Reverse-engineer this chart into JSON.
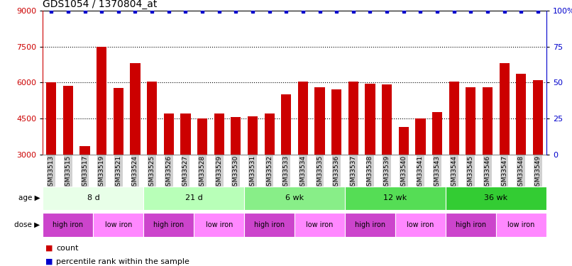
{
  "title": "GDS1054 / 1370804_at",
  "samples": [
    "GSM33513",
    "GSM33515",
    "GSM33517",
    "GSM33519",
    "GSM33521",
    "GSM33524",
    "GSM33525",
    "GSM33526",
    "GSM33527",
    "GSM33528",
    "GSM33529",
    "GSM33530",
    "GSM33531",
    "GSM33532",
    "GSM33533",
    "GSM33534",
    "GSM33535",
    "GSM33536",
    "GSM33537",
    "GSM33538",
    "GSM33539",
    "GSM33540",
    "GSM33541",
    "GSM33543",
    "GSM33544",
    "GSM33545",
    "GSM33546",
    "GSM33547",
    "GSM33548",
    "GSM33549"
  ],
  "counts": [
    6010,
    5870,
    3350,
    7500,
    5780,
    6800,
    6050,
    4700,
    4700,
    4500,
    4700,
    4550,
    4600,
    4700,
    5500,
    6050,
    5800,
    5700,
    6050,
    5950,
    5930,
    4150,
    4500,
    4750,
    6050,
    5800,
    5800,
    6800,
    6350,
    6100
  ],
  "bar_color": "#cc0000",
  "dot_color": "#0000cc",
  "ylim_left": [
    3000,
    9000
  ],
  "yticks_left": [
    3000,
    4500,
    6000,
    7500,
    9000
  ],
  "yticks_right": [
    0,
    25,
    50,
    75,
    100
  ],
  "ylabel_left_color": "#cc0000",
  "ylabel_right_color": "#0000cc",
  "age_groups": [
    {
      "label": "8 d",
      "start": 0,
      "end": 6,
      "color": "#e8ffe8"
    },
    {
      "label": "21 d",
      "start": 6,
      "end": 12,
      "color": "#b8ffb8"
    },
    {
      "label": "6 wk",
      "start": 12,
      "end": 18,
      "color": "#88ee88"
    },
    {
      "label": "12 wk",
      "start": 18,
      "end": 24,
      "color": "#55dd55"
    },
    {
      "label": "36 wk",
      "start": 24,
      "end": 30,
      "color": "#33cc33"
    }
  ],
  "dose_groups": [
    {
      "label": "high iron",
      "start": 0,
      "end": 3,
      "color": "#cc44cc"
    },
    {
      "label": "low iron",
      "start": 3,
      "end": 6,
      "color": "#ff88ff"
    },
    {
      "label": "high iron",
      "start": 6,
      "end": 9,
      "color": "#cc44cc"
    },
    {
      "label": "low iron",
      "start": 9,
      "end": 12,
      "color": "#ff88ff"
    },
    {
      "label": "high iron",
      "start": 12,
      "end": 15,
      "color": "#cc44cc"
    },
    {
      "label": "low iron",
      "start": 15,
      "end": 18,
      "color": "#ff88ff"
    },
    {
      "label": "high iron",
      "start": 18,
      "end": 21,
      "color": "#cc44cc"
    },
    {
      "label": "low iron",
      "start": 21,
      "end": 24,
      "color": "#ff88ff"
    },
    {
      "label": "high iron",
      "start": 24,
      "end": 27,
      "color": "#cc44cc"
    },
    {
      "label": "low iron",
      "start": 27,
      "end": 30,
      "color": "#ff88ff"
    }
  ],
  "background_color": "#ffffff",
  "tick_label_fontsize": 6.5,
  "bar_width": 0.6,
  "xtick_bg_color": "#d0d0d0"
}
